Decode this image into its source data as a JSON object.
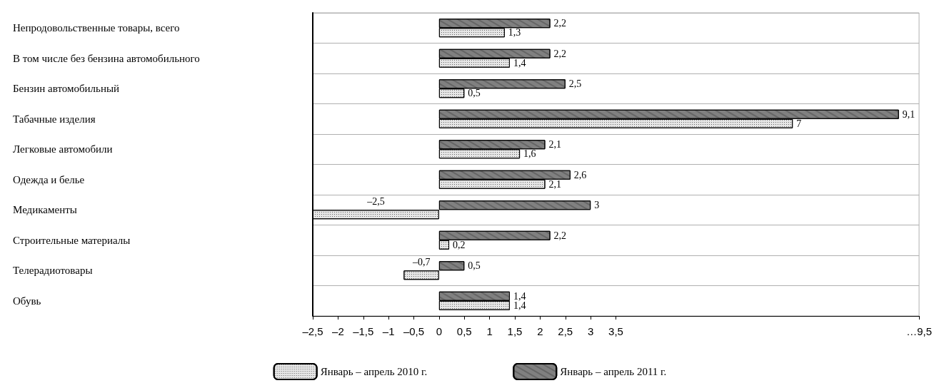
{
  "chart_data": {
    "type": "bar",
    "orientation": "horizontal",
    "categories": [
      "Непродовольственные товары, всего",
      "В том числе без бензина автомобильного",
      "Бензин автомобильный",
      "Табачные изделия",
      "Легковые автомобили",
      "Одежда и белье",
      "Медикаменты",
      "Строительные материалы",
      "Телерадиотовары",
      "Обувь"
    ],
    "series": [
      {
        "name": "Январь – апрель 2010 г.",
        "color": "#e6e6e6",
        "values": [
          1.3,
          1.4,
          0.5,
          7,
          1.6,
          2.1,
          -2.5,
          0.2,
          -0.7,
          1.4
        ],
        "value_labels": [
          "1,3",
          "1,4",
          "0,5",
          "7",
          "1,6",
          "2,1",
          "–2,5",
          "0,2",
          "–0,7",
          "1,4"
        ]
      },
      {
        "name": "Январь – апрель 2011 г.",
        "color": "#808080",
        "values": [
          2.2,
          2.2,
          2.5,
          9.1,
          2.1,
          2.6,
          3,
          2.2,
          0.5,
          1.4
        ],
        "value_labels": [
          "2,2",
          "2,2",
          "2,5",
          "9,1",
          "2,1",
          "2,6",
          "3",
          "2,2",
          "0,5",
          "1,4"
        ]
      }
    ],
    "xlim": [
      -2.5,
      9.5
    ],
    "xticks": [
      {
        "value": -2.5,
        "label": "–2,5"
      },
      {
        "value": -2,
        "label": "–2"
      },
      {
        "value": -1.5,
        "label": "–1,5"
      },
      {
        "value": -1,
        "label": "–1"
      },
      {
        "value": -0.5,
        "label": "–0,5"
      },
      0,
      {
        "value": 0.5,
        "label": "0,5"
      },
      1,
      {
        "value": 1.5,
        "label": "1,5"
      },
      2,
      {
        "value": 2.5,
        "label": "2,5"
      },
      3,
      {
        "value": 3.5,
        "label": "3,5"
      },
      {
        "value": 9.5,
        "label": "…9,5"
      }
    ],
    "grid": "y",
    "legend": "bottom"
  }
}
